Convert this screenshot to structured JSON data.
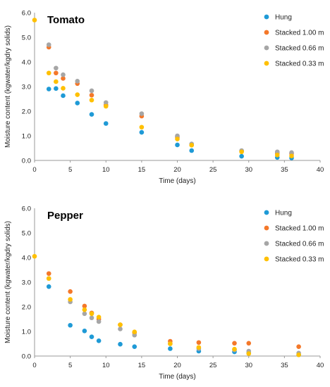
{
  "colors": {
    "Hung": "#1f9ad6",
    "Stacked 1.00 m": "#f4782a",
    "Stacked 0.66 m": "#a6a6a6",
    "Stacked 0.33 m": "#ffc000"
  },
  "chart_data": [
    {
      "type": "scatter",
      "title": "Tomato",
      "xlabel": "Time (days)",
      "ylabel": "Moisture content (kgwater/kgdry solids)",
      "xlim": [
        0,
        40
      ],
      "ylim": [
        0,
        6
      ],
      "xticks": [
        "0",
        "5",
        "10",
        "15",
        "20",
        "25",
        "30",
        "35",
        "40"
      ],
      "yticks": [
        "0.0",
        "1.0",
        "2.0",
        "3.0",
        "4.0",
        "5.0",
        "6.0"
      ],
      "legend_position": "top-right",
      "series": [
        {
          "name": "Hung",
          "points": [
            [
              2,
              2.9
            ],
            [
              3,
              2.92
            ],
            [
              4,
              2.63
            ],
            [
              6,
              2.33
            ],
            [
              8,
              1.87
            ],
            [
              10,
              1.5
            ],
            [
              15,
              1.14
            ],
            [
              20,
              0.63
            ],
            [
              22,
              0.4
            ],
            [
              29,
              0.17
            ],
            [
              34,
              0.12
            ],
            [
              36,
              0.1
            ]
          ]
        },
        {
          "name": "Stacked 1.00 m",
          "points": [
            [
              2,
              4.6
            ],
            [
              3,
              3.55
            ],
            [
              4,
              3.33
            ],
            [
              6,
              3.12
            ],
            [
              8,
              2.65
            ],
            [
              10,
              2.25
            ],
            [
              15,
              1.8
            ],
            [
              20,
              0.95
            ],
            [
              22,
              0.63
            ],
            [
              29,
              0.38
            ],
            [
              34,
              0.3
            ],
            [
              36,
              0.28
            ]
          ]
        },
        {
          "name": "Stacked 0.66 m",
          "points": [
            [
              2,
              4.7
            ],
            [
              3,
              3.75
            ],
            [
              4,
              3.48
            ],
            [
              6,
              3.22
            ],
            [
              8,
              2.83
            ],
            [
              10,
              2.35
            ],
            [
              15,
              1.9
            ],
            [
              20,
              1.0
            ],
            [
              22,
              0.67
            ],
            [
              29,
              0.4
            ],
            [
              34,
              0.35
            ],
            [
              36,
              0.32
            ]
          ]
        },
        {
          "name": "Stacked 0.33 m",
          "points": [
            [
              0,
              5.7
            ],
            [
              2,
              3.55
            ],
            [
              3,
              3.2
            ],
            [
              4,
              2.93
            ],
            [
              6,
              2.67
            ],
            [
              8,
              2.45
            ],
            [
              10,
              2.2
            ],
            [
              15,
              1.35
            ],
            [
              20,
              0.87
            ],
            [
              22,
              0.62
            ],
            [
              29,
              0.35
            ],
            [
              34,
              0.22
            ],
            [
              36,
              0.18
            ]
          ]
        }
      ]
    },
    {
      "type": "scatter",
      "title": "Pepper",
      "xlabel": "Time (days)",
      "ylabel": "Moisture content (kgwater/kgdry solids)",
      "xlim": [
        0,
        40
      ],
      "ylim": [
        0,
        6
      ],
      "xticks": [
        "0",
        "5",
        "10",
        "15",
        "20",
        "25",
        "30",
        "35",
        "40"
      ],
      "yticks": [
        "0.0",
        "1.0",
        "2.0",
        "3.0",
        "4.0",
        "5.0",
        "6.0"
      ],
      "legend_position": "top-right",
      "series": [
        {
          "name": "Hung",
          "points": [
            [
              2,
              2.82
            ],
            [
              5,
              1.25
            ],
            [
              7,
              1.02
            ],
            [
              8,
              0.78
            ],
            [
              9,
              0.62
            ],
            [
              12,
              0.48
            ],
            [
              14,
              0.38
            ],
            [
              19,
              0.3
            ],
            [
              23,
              0.2
            ],
            [
              28,
              0.17
            ],
            [
              30,
              0.12
            ],
            [
              37,
              0.05
            ]
          ]
        },
        {
          "name": "Stacked 1.00 m",
          "points": [
            [
              2,
              3.35
            ],
            [
              5,
              2.62
            ],
            [
              7,
              2.03
            ],
            [
              8,
              1.75
            ],
            [
              9,
              1.5
            ],
            [
              12,
              1.27
            ],
            [
              14,
              0.95
            ],
            [
              19,
              0.6
            ],
            [
              23,
              0.55
            ],
            [
              28,
              0.52
            ],
            [
              30,
              0.52
            ],
            [
              37,
              0.38
            ]
          ]
        },
        {
          "name": "Stacked 0.66 m",
          "points": [
            [
              2,
              3.15
            ],
            [
              5,
              2.2
            ],
            [
              7,
              1.72
            ],
            [
              8,
              1.55
            ],
            [
              9,
              1.4
            ],
            [
              12,
              1.1
            ],
            [
              14,
              0.85
            ],
            [
              19,
              0.5
            ],
            [
              23,
              0.3
            ],
            [
              28,
              0.25
            ],
            [
              30,
              0.2
            ],
            [
              37,
              0.12
            ]
          ]
        },
        {
          "name": "Stacked 0.33 m",
          "points": [
            [
              0,
              4.05
            ],
            [
              2,
              3.15
            ],
            [
              5,
              2.3
            ],
            [
              7,
              1.88
            ],
            [
              8,
              1.72
            ],
            [
              9,
              1.58
            ],
            [
              12,
              1.27
            ],
            [
              14,
              0.98
            ],
            [
              19,
              0.5
            ],
            [
              23,
              0.35
            ],
            [
              28,
              0.28
            ],
            [
              30,
              0.1
            ],
            [
              37,
              0.05
            ]
          ]
        }
      ]
    }
  ]
}
